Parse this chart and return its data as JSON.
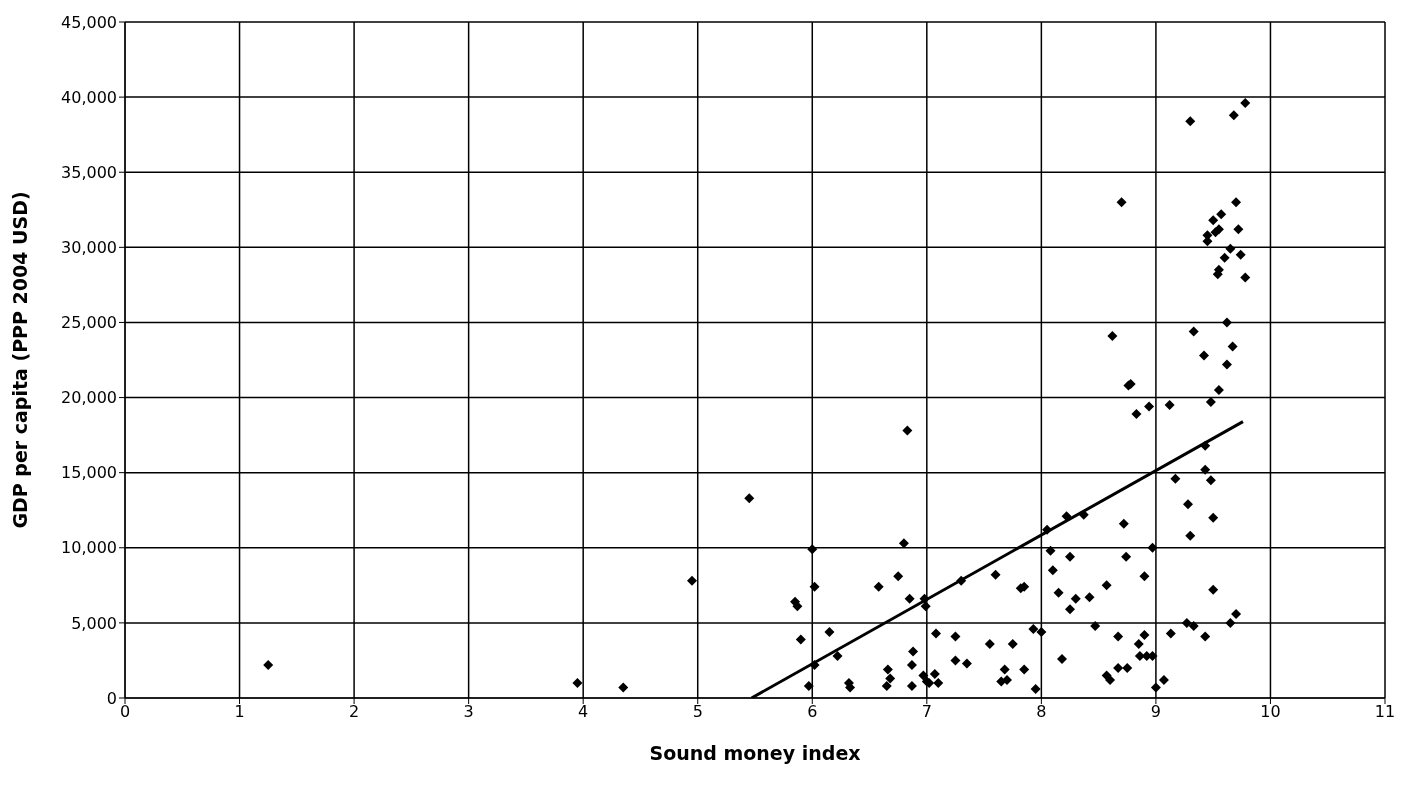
{
  "chart_data": {
    "type": "scatter",
    "xlabel": "Sound money index",
    "ylabel": "GDP per capita (PPP 2004 USD)",
    "xlim": [
      0,
      11
    ],
    "xticks": [
      0,
      1,
      2,
      3,
      4,
      5,
      6,
      7,
      8,
      9,
      10,
      11
    ],
    "ylim": [
      0,
      45000
    ],
    "yticks": [
      {
        "value": 0,
        "label": "0"
      },
      {
        "value": 5000,
        "label": "5,000"
      },
      {
        "value": 10000,
        "label": "10,000"
      },
      {
        "value": 15000,
        "label": "15,000"
      },
      {
        "value": 20000,
        "label": "20,000"
      },
      {
        "value": 25000,
        "label": "25,000"
      },
      {
        "value": 30000,
        "label": "30,000"
      },
      {
        "value": 35000,
        "label": "35,000"
      },
      {
        "value": 40000,
        "label": "40,000"
      },
      {
        "value": 45000,
        "label": "45,000"
      }
    ],
    "grid": true,
    "legend": false,
    "marker": "diamond",
    "series": [
      {
        "color": "#000000",
        "x": [
          1.25,
          3.95,
          4.35,
          4.95,
          5.45,
          5.85,
          5.87,
          5.9,
          5.97,
          6.0,
          6.02,
          6.02,
          6.15,
          6.22,
          6.32,
          6.33,
          6.58,
          6.65,
          6.66,
          6.68,
          6.75,
          6.8,
          6.83,
          6.85,
          6.88,
          6.87,
          6.87,
          6.97,
          6.98,
          6.99,
          7.0,
          7.02,
          7.08,
          7.07,
          7.1,
          7.25,
          7.25,
          7.3,
          7.35,
          7.55,
          7.6,
          7.65,
          7.68,
          7.7,
          7.75,
          7.82,
          7.85,
          7.85,
          7.93,
          7.95,
          8.0,
          8.05,
          8.08,
          8.1,
          8.15,
          8.18,
          8.22,
          8.25,
          8.25,
          8.3,
          8.37,
          8.42,
          8.47,
          8.57,
          8.57,
          8.6,
          8.62,
          8.67,
          8.67,
          8.7,
          8.72,
          8.74,
          8.75,
          8.76,
          8.78,
          8.83,
          8.85,
          8.86,
          8.9,
          8.9,
          8.92,
          8.94,
          8.97,
          8.97,
          9.0,
          9.07,
          9.12,
          9.13,
          9.17,
          9.27,
          9.28,
          9.3,
          9.3,
          9.33,
          9.33,
          9.42,
          9.43,
          9.43,
          9.43,
          9.45,
          9.45,
          9.48,
          9.48,
          9.5,
          9.5,
          9.5,
          9.52,
          9.54,
          9.55,
          9.55,
          9.55,
          9.57,
          9.6,
          9.62,
          9.62,
          9.65,
          9.65,
          9.67,
          9.68,
          9.7,
          9.7,
          9.72,
          9.74,
          9.78,
          9.78
        ],
        "values": [
          2200,
          1000,
          700,
          7800,
          13300,
          6400,
          6100,
          3900,
          800,
          9900,
          7400,
          2200,
          4400,
          2800,
          1000,
          700,
          7400,
          800,
          1900,
          1300,
          8100,
          10300,
          17800,
          6600,
          3100,
          2200,
          800,
          1500,
          6600,
          6100,
          1100,
          1000,
          4300,
          1600,
          1000,
          2500,
          4100,
          7800,
          2300,
          3600,
          8200,
          1100,
          1900,
          1200,
          3600,
          7300,
          7400,
          1900,
          4600,
          600,
          4400,
          11200,
          9800,
          8500,
          7000,
          2600,
          12100,
          9400,
          5900,
          6600,
          12200,
          6700,
          4800,
          7500,
          1500,
          1200,
          24100,
          4100,
          2000,
          33000,
          11600,
          9400,
          2000,
          20800,
          20900,
          18900,
          3600,
          2800,
          4200,
          8100,
          2800,
          19400,
          10000,
          2800,
          700,
          1200,
          19500,
          4300,
          14600,
          5000,
          12900,
          10800,
          38400,
          24400,
          4800,
          22800,
          16800,
          15200,
          4100,
          30400,
          30800,
          19700,
          14500,
          12000,
          7200,
          31800,
          31000,
          28200,
          28500,
          20500,
          31200,
          32200,
          29300,
          25000,
          22200,
          29900,
          5000,
          23400,
          38800,
          33000,
          5600,
          31200,
          29500,
          28000,
          39600
        ]
      },
      {
        "type": "line",
        "color": "#000000",
        "marker": "none",
        "x": [
          5.47,
          9.76
        ],
        "values": [
          0,
          18400
        ]
      }
    ]
  }
}
